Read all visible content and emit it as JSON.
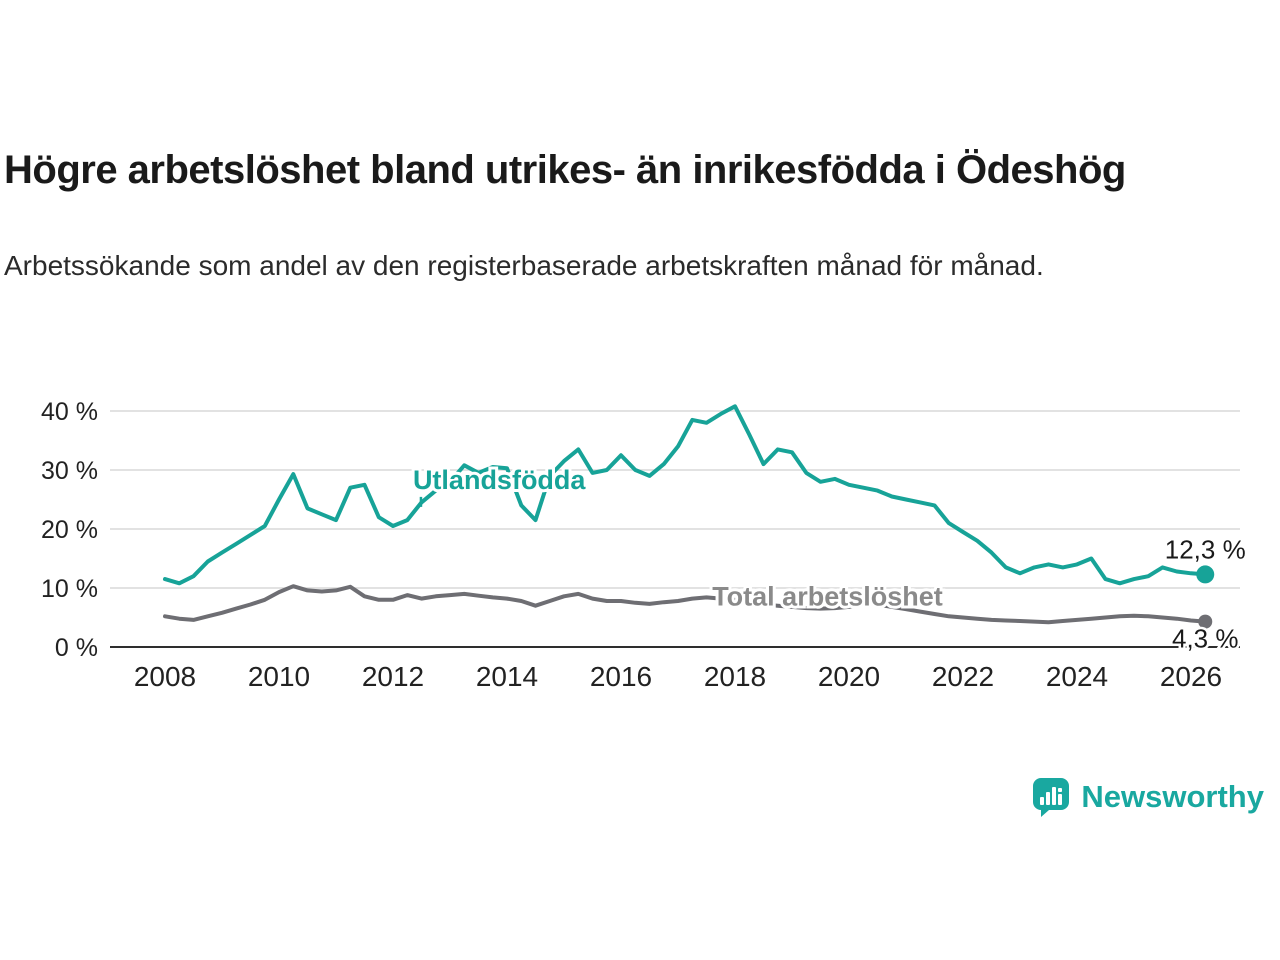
{
  "chart_data": {
    "type": "line",
    "title": "Högre arbetslöshet bland utrikes- än inrikesfödda i Ödeshög",
    "subtitle": "Arbetssökande som andel av den registerbaserade arbetskraften månad för månad.",
    "x_start": 2008,
    "x_step": 0.25,
    "xlim": [
      2007,
      2027
    ],
    "ylim": [
      0,
      43
    ],
    "x_ticks": [
      2008,
      2010,
      2012,
      2014,
      2016,
      2018,
      2020,
      2022,
      2024,
      2026
    ],
    "x_tick_labels": [
      "2008",
      "2010",
      "2012",
      "2014",
      "2016",
      "2018",
      "2020",
      "2022",
      "2024",
      "2026"
    ],
    "y_ticks": [
      0,
      10,
      20,
      30,
      40
    ],
    "y_tick_labels": [
      "0 %",
      "10 %",
      "20 %",
      "30 %",
      "40 %"
    ],
    "grid": "horizontal",
    "legend_position": "inline-labels",
    "colors": {
      "grid": "#d9d9d9",
      "axis": "#2e2e2e",
      "tick_text": "#222222",
      "annotation_text": "#1a1a1a"
    },
    "series": [
      {
        "name": "Total arbetslöshet",
        "color": "#6e6e73",
        "label_color": "#8a8a8a",
        "end_label": "4,3 %",
        "end_label_position": "below",
        "dot_radius": 7,
        "label_pos": {
          "x": 2017.6,
          "y": 7.0
        },
        "leader": false,
        "values": [
          5.2,
          4.8,
          4.6,
          5.2,
          5.8,
          6.5,
          7.2,
          8.0,
          9.3,
          10.3,
          9.6,
          9.4,
          9.6,
          10.2,
          8.6,
          8.0,
          8.0,
          8.8,
          8.2,
          8.6,
          8.8,
          9.0,
          8.7,
          8.4,
          8.2,
          7.8,
          7.0,
          7.8,
          8.6,
          9.0,
          8.2,
          7.8,
          7.8,
          7.5,
          7.3,
          7.6,
          7.8,
          8.2,
          8.4,
          8.2,
          8.0,
          7.6,
          7.2,
          7.0,
          6.8,
          6.6,
          6.5,
          6.6,
          6.8,
          7.4,
          7.2,
          6.8,
          6.4,
          6.0,
          5.6,
          5.2,
          5.0,
          4.8,
          4.6,
          4.5,
          4.4,
          4.3,
          4.2,
          4.4,
          4.6,
          4.8,
          5.0,
          5.2,
          5.3,
          5.2,
          5.0,
          4.8,
          4.5,
          4.3
        ]
      },
      {
        "name": "Utlandsfödda",
        "color": "#17a398",
        "label_color": "#17a398",
        "end_label": "12,3 %",
        "end_label_position": "above",
        "dot_radius": 9,
        "label_pos": {
          "x": 2012.35,
          "y": 26.8
        },
        "leader": true,
        "values": [
          11.5,
          10.8,
          12.0,
          14.5,
          16.0,
          17.5,
          19.0,
          20.5,
          25.0,
          29.3,
          23.5,
          22.5,
          21.5,
          27.0,
          27.5,
          22.0,
          20.5,
          21.5,
          24.5,
          26.5,
          28.0,
          30.8,
          29.5,
          30.5,
          30.3,
          24.0,
          21.5,
          29.0,
          31.5,
          33.5,
          29.5,
          30.0,
          32.5,
          30.0,
          29.0,
          31.0,
          34.0,
          38.5,
          38.0,
          39.5,
          40.8,
          36.0,
          31.0,
          33.5,
          33.0,
          29.5,
          28.0,
          28.5,
          27.5,
          27.0,
          26.5,
          25.5,
          25.0,
          24.5,
          24.0,
          21.0,
          19.5,
          18.0,
          16.0,
          13.5,
          12.5,
          13.5,
          14.0,
          13.5,
          14.0,
          15.0,
          11.5,
          10.8,
          11.5,
          12.0,
          13.5,
          12.8,
          12.5,
          12.3
        ]
      }
    ]
  },
  "footer": {
    "brand": "Newsworthy",
    "brand_color": "#19a8a0"
  }
}
